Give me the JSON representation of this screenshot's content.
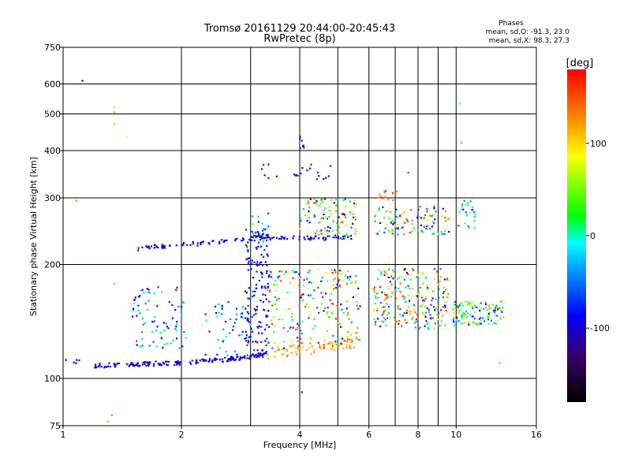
{
  "chart_data": {
    "type": "scatter",
    "title": "Tromsø 20161129 20:44:00-20:45:43",
    "subtitle": "RwPretec (8p)",
    "phase_info": {
      "heading": "Phases",
      "line_o": "mean, sd,O: -91.3, 23.0",
      "line_x": "mean, sd,X:  98.3, 27.3"
    },
    "xlabel": "Frequency [MHz]",
    "ylabel": "Stationary phase Virtual Height [km]",
    "x_scale": "log",
    "y_scale": "log",
    "xlim": [
      1,
      16
    ],
    "ylim": [
      75,
      750
    ],
    "x_ticks": [
      1,
      2,
      4,
      6,
      8,
      10,
      16
    ],
    "x_tick_labels": [
      "1",
      "2",
      "4",
      "6",
      "8",
      "10",
      "16"
    ],
    "x_minor_ticks": [
      3,
      5,
      7,
      9
    ],
    "y_ticks": [
      75,
      100,
      200,
      300,
      400,
      500,
      600,
      750
    ],
    "y_tick_labels": [
      "75",
      "100",
      "200",
      "300",
      "400",
      "500",
      "600",
      "750"
    ],
    "grid": true,
    "colorbar": {
      "label": "[deg]",
      "range": [
        -180,
        180
      ],
      "ticks": [
        100,
        0,
        -100
      ],
      "tick_labels": [
        "100",
        "0",
        "-100"
      ],
      "colormap": [
        "#000000",
        "#3a006a",
        "#0000ff",
        "#00ffff",
        "#00ff00",
        "#ffff00",
        "#ff8c00",
        "#ff0000"
      ]
    },
    "series": [
      {
        "kind": "trace",
        "x": [
          1.0,
          1.05,
          1.1
        ],
        "y": [
          110,
          111,
          111
        ],
        "spread": 2,
        "n": 5,
        "phase": [
          -100,
          -95
        ]
      },
      {
        "kind": "trace",
        "x": [
          1.2,
          1.5,
          2.0,
          2.5,
          3.0,
          3.3
        ],
        "y": [
          108,
          109,
          110,
          112,
          114,
          116
        ],
        "spread": 1.5,
        "n": 180,
        "phase": [
          -110,
          -85
        ]
      },
      {
        "kind": "trace",
        "x": [
          3.3,
          3.6,
          4.0,
          4.6,
          5.6
        ],
        "y": [
          117,
          118,
          119,
          121,
          125
        ],
        "spread": 4,
        "n": 70,
        "phase": [
          100,
          140
        ]
      },
      {
        "kind": "trace",
        "x": [
          1.55,
          1.8,
          2.2,
          2.6,
          3.2,
          4.0,
          5.0,
          5.6
        ],
        "y": [
          221,
          224,
          227,
          231,
          236,
          235,
          235,
          236
        ],
        "spread": 3,
        "n": 120,
        "phase": [
          -110,
          -80
        ]
      },
      {
        "kind": "cloud",
        "x": [
          1.5,
          2.05
        ],
        "y": [
          120,
          175
        ],
        "n": 80,
        "phase": [
          -120,
          20
        ]
      },
      {
        "kind": "cloud",
        "x": [
          2.3,
          3.0
        ],
        "y": [
          115,
          160
        ],
        "n": 45,
        "phase": [
          -115,
          10
        ]
      },
      {
        "kind": "cloud",
        "x": [
          2.9,
          3.35
        ],
        "y": [
          115,
          250
        ],
        "n": 160,
        "phase": [
          -120,
          -60
        ]
      },
      {
        "kind": "cloud",
        "x": [
          3.0,
          3.4
        ],
        "y": [
          230,
          280
        ],
        "n": 18,
        "phase": [
          -100,
          30
        ]
      },
      {
        "kind": "cloud",
        "x": [
          3.3,
          5.7
        ],
        "y": [
          120,
          195
        ],
        "n": 210,
        "phase": [
          -110,
          180
        ]
      },
      {
        "kind": "cloud",
        "x": [
          4.0,
          5.6
        ],
        "y": [
          235,
          300
        ],
        "n": 110,
        "phase": [
          -110,
          170
        ]
      },
      {
        "kind": "cloud",
        "x": [
          3.2,
          4.9
        ],
        "y": [
          335,
          370
        ],
        "n": 22,
        "phase": [
          -100,
          -70
        ]
      },
      {
        "kind": "cloud",
        "x": [
          4.0,
          4.1
        ],
        "y": [
          400,
          440
        ],
        "n": 7,
        "phase": [
          -100,
          -80
        ]
      },
      {
        "kind": "cloud",
        "x": [
          6.1,
          9.6
        ],
        "y": [
          135,
          195
        ],
        "n": 230,
        "phase": [
          -110,
          175
        ]
      },
      {
        "kind": "cloud",
        "x": [
          6.2,
          9.6
        ],
        "y": [
          240,
          285
        ],
        "n": 110,
        "phase": [
          -110,
          175
        ]
      },
      {
        "kind": "cloud",
        "x": [
          6.3,
          7.2
        ],
        "y": [
          295,
          320
        ],
        "n": 12,
        "phase": [
          120,
          170
        ]
      },
      {
        "kind": "cloud",
        "x": [
          9.8,
          13.2
        ],
        "y": [
          138,
          160
        ],
        "n": 120,
        "phase": [
          -110,
          130
        ]
      },
      {
        "kind": "cloud",
        "x": [
          10.1,
          11.2
        ],
        "y": [
          250,
          300
        ],
        "n": 28,
        "phase": [
          -100,
          60
        ]
      },
      {
        "kind": "points",
        "x": [
          1.12,
          1.35,
          1.35,
          1.35,
          1.45,
          1.35,
          1.08,
          1.62,
          10.25,
          10.3,
          12.9,
          4.05,
          7.55,
          1.3,
          1.33,
          1.98
        ],
        "y": [
          612,
          520,
          505,
          470,
          435,
          178,
          295,
          158,
          532,
          420,
          110,
          92,
          350,
          77,
          80,
          99
        ],
        "phase": [
          -110,
          60,
          40,
          50,
          90,
          120,
          130,
          140,
          0,
          -20,
          40,
          -100,
          170,
          120,
          140,
          0
        ]
      }
    ]
  }
}
